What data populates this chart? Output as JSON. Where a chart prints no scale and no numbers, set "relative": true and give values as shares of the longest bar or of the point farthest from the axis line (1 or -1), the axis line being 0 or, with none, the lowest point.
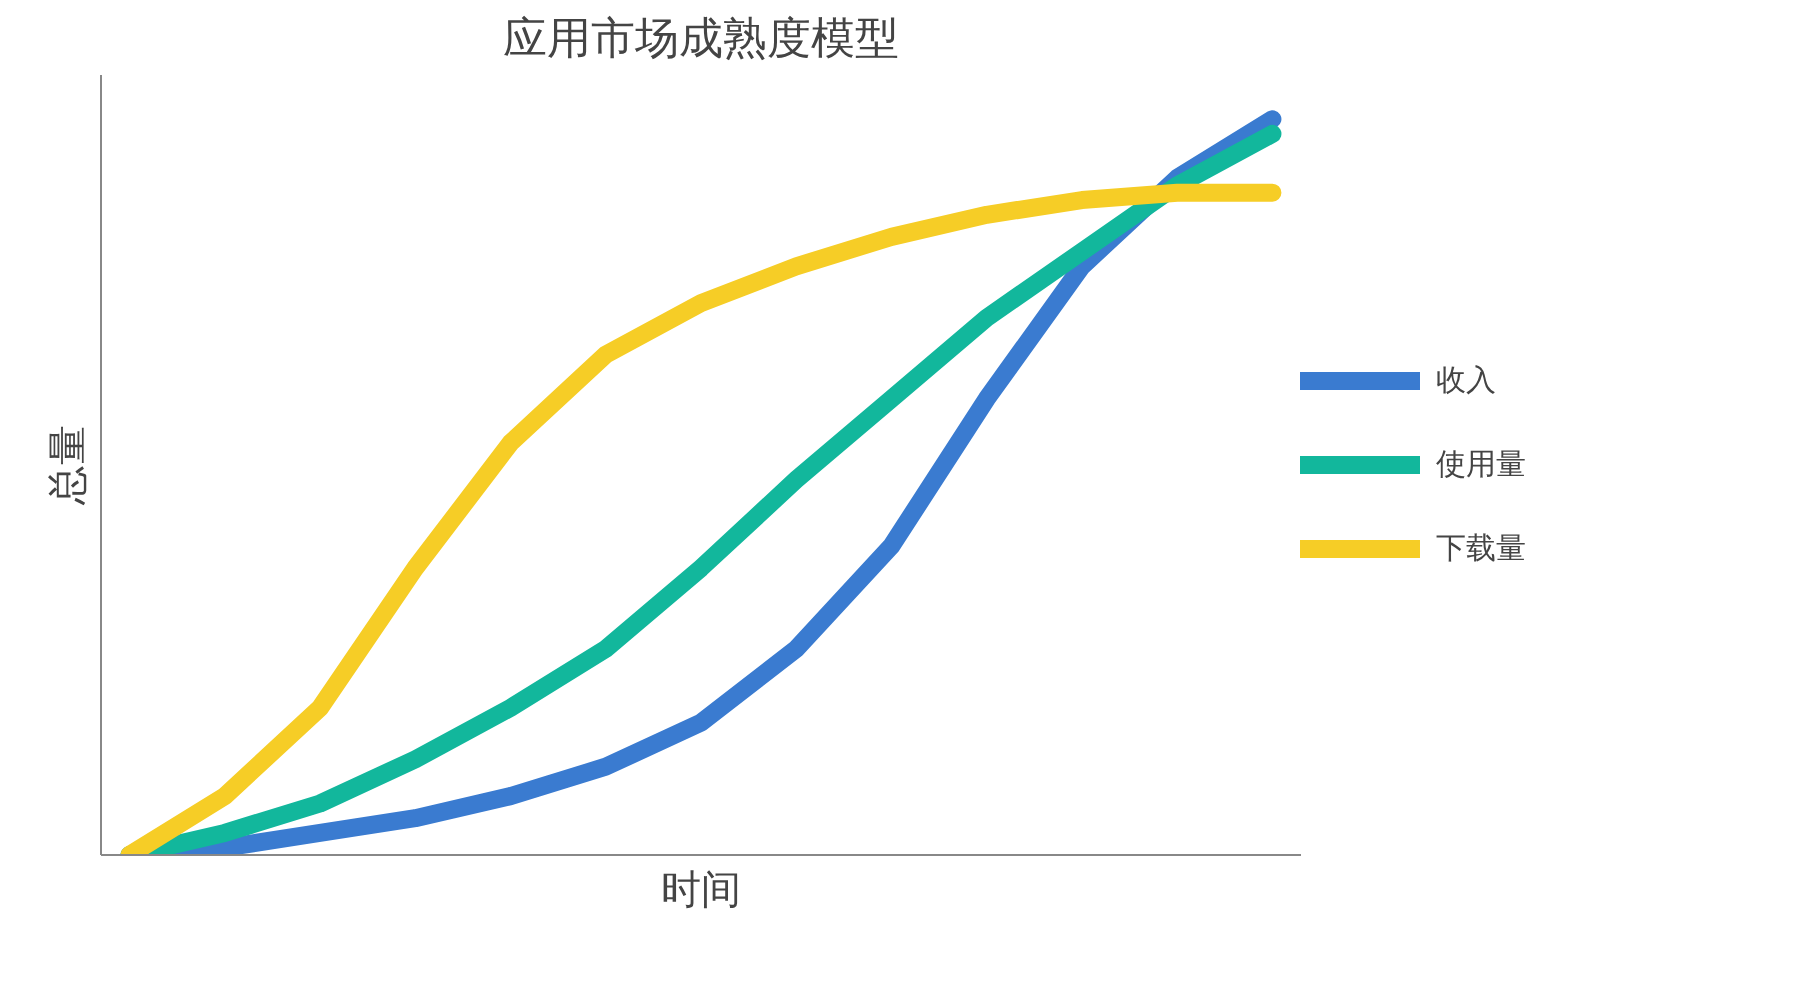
{
  "chart_data": {
    "type": "line",
    "title": "应用市场成熟度模型",
    "xlabel": "时间",
    "ylabel": "总量",
    "relative": true,
    "legend": "right",
    "marker": "none",
    "line_style": "solid",
    "categories": [
      null,
      null,
      null,
      null,
      null,
      null,
      null,
      null,
      null,
      null,
      null,
      null,
      null
    ],
    "series": [
      {
        "name": "收入",
        "color": "#3a7bd0",
        "values": [
          0,
          0.01,
          0.03,
          0.05,
          0.08,
          0.12,
          0.18,
          0.28,
          0.42,
          0.62,
          0.8,
          0.92,
          1
        ]
      },
      {
        "name": "使用量",
        "color": "#12b79c",
        "values": [
          0,
          0.03,
          0.07,
          0.13,
          0.2,
          0.28,
          0.39,
          0.51,
          0.62,
          0.73,
          0.82,
          0.91,
          0.98
        ]
      },
      {
        "name": "下载量",
        "color": "#f6cd26",
        "values": [
          0,
          0.08,
          0.2,
          0.39,
          0.56,
          0.68,
          0.75,
          0.8,
          0.84,
          0.87,
          0.89,
          0.9,
          0.9
        ]
      }
    ]
  }
}
